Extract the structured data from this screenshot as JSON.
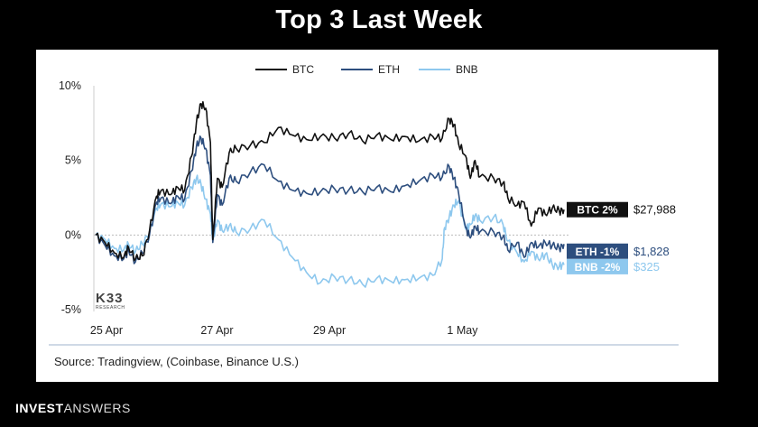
{
  "title": "Top 3 Last Week",
  "source": "Source: Tradingview, (Coinbase, Binance U.S.)",
  "footer": {
    "brand_bold": "INVEST",
    "brand_light": "ANSWERS"
  },
  "logo": {
    "big": "K33",
    "small": "RESEARCH"
  },
  "chart_data": {
    "type": "line",
    "ylim": [
      -5,
      10
    ],
    "yticks": [
      10,
      5,
      0,
      -5
    ],
    "ytick_labels": [
      "10%",
      "5%",
      "0%",
      "-5%"
    ],
    "xlim": [
      0,
      1
    ],
    "xticks": [
      0,
      0.236,
      0.476,
      0.76
    ],
    "xtick_labels": [
      "25 Apr",
      "27 Apr",
      "29 Apr",
      "1 May"
    ],
    "legend": [
      "BTC",
      "ETH",
      "BNB"
    ],
    "colors": {
      "BTC": "#111111",
      "ETH": "#2d4e7e",
      "BNB": "#8ec8ee"
    },
    "series": [
      {
        "name": "BTC",
        "values": [
          [
            0,
            0
          ],
          [
            0.02,
            -0.5
          ],
          [
            0.04,
            -1.2
          ],
          [
            0.06,
            -1.5
          ],
          [
            0.07,
            -0.8
          ],
          [
            0.085,
            -1.6
          ],
          [
            0.1,
            -1.4
          ],
          [
            0.115,
            0.3
          ],
          [
            0.13,
            2.6
          ],
          [
            0.14,
            3.0
          ],
          [
            0.16,
            2.7
          ],
          [
            0.175,
            3.2
          ],
          [
            0.19,
            3.0
          ],
          [
            0.205,
            5.3
          ],
          [
            0.215,
            7.5
          ],
          [
            0.225,
            8.8
          ],
          [
            0.235,
            8.5
          ],
          [
            0.245,
            6.2
          ],
          [
            0.25,
            -0.3
          ],
          [
            0.26,
            3.8
          ],
          [
            0.27,
            3.2
          ],
          [
            0.285,
            5.5
          ],
          [
            0.3,
            5.8
          ],
          [
            0.33,
            6.0
          ],
          [
            0.36,
            6.2
          ],
          [
            0.39,
            7.2
          ],
          [
            0.42,
            6.7
          ],
          [
            0.45,
            6.4
          ],
          [
            0.48,
            6.6
          ],
          [
            0.51,
            6.5
          ],
          [
            0.54,
            6.8
          ],
          [
            0.57,
            6.3
          ],
          [
            0.6,
            6.7
          ],
          [
            0.63,
            6.4
          ],
          [
            0.66,
            6.6
          ],
          [
            0.69,
            6.3
          ],
          [
            0.72,
            6.6
          ],
          [
            0.74,
            6.5
          ],
          [
            0.755,
            7.8
          ],
          [
            0.765,
            7.4
          ],
          [
            0.775,
            6.1
          ],
          [
            0.79,
            5.3
          ],
          [
            0.8,
            3.8
          ],
          [
            0.81,
            5.0
          ],
          [
            0.82,
            3.9
          ],
          [
            0.85,
            3.8
          ],
          [
            0.87,
            3.5
          ],
          [
            0.88,
            2.5
          ],
          [
            0.9,
            2.0
          ],
          [
            0.915,
            2.2
          ],
          [
            0.93,
            0.6
          ],
          [
            0.945,
            1.8
          ],
          [
            0.96,
            1.4
          ],
          [
            0.975,
            1.8
          ],
          [
            0.99,
            1.6
          ],
          [
            1.0,
            1.7
          ]
        ]
      },
      {
        "name": "ETH",
        "values": [
          [
            0,
            0
          ],
          [
            0.02,
            -0.7
          ],
          [
            0.04,
            -1.4
          ],
          [
            0.06,
            -1.6
          ],
          [
            0.07,
            -1.0
          ],
          [
            0.085,
            -1.8
          ],
          [
            0.1,
            -1.2
          ],
          [
            0.115,
            0
          ],
          [
            0.13,
            2.2
          ],
          [
            0.14,
            2.5
          ],
          [
            0.16,
            2.1
          ],
          [
            0.175,
            2.6
          ],
          [
            0.19,
            2.4
          ],
          [
            0.205,
            4.3
          ],
          [
            0.215,
            5.9
          ],
          [
            0.225,
            6.5
          ],
          [
            0.235,
            5.8
          ],
          [
            0.245,
            4.0
          ],
          [
            0.25,
            -0.5
          ],
          [
            0.26,
            2.7
          ],
          [
            0.27,
            2.0
          ],
          [
            0.285,
            3.8
          ],
          [
            0.3,
            3.6
          ],
          [
            0.33,
            4.2
          ],
          [
            0.36,
            4.7
          ],
          [
            0.39,
            3.6
          ],
          [
            0.42,
            3.0
          ],
          [
            0.45,
            2.8
          ],
          [
            0.48,
            2.9
          ],
          [
            0.51,
            3.1
          ],
          [
            0.54,
            3.0
          ],
          [
            0.57,
            2.9
          ],
          [
            0.6,
            3.2
          ],
          [
            0.63,
            2.9
          ],
          [
            0.66,
            3.3
          ],
          [
            0.69,
            3.6
          ],
          [
            0.72,
            4.0
          ],
          [
            0.74,
            3.9
          ],
          [
            0.755,
            4.6
          ],
          [
            0.765,
            3.8
          ],
          [
            0.775,
            2.8
          ],
          [
            0.79,
            0.5
          ],
          [
            0.8,
            -0.2
          ],
          [
            0.81,
            0.6
          ],
          [
            0.82,
            0.2
          ],
          [
            0.85,
            0.2
          ],
          [
            0.87,
            -0.1
          ],
          [
            0.88,
            -1.0
          ],
          [
            0.9,
            -0.5
          ],
          [
            0.915,
            -1.5
          ],
          [
            0.93,
            -0.5
          ],
          [
            0.945,
            -0.8
          ],
          [
            0.96,
            -0.5
          ],
          [
            0.975,
            -0.7
          ],
          [
            0.99,
            -0.9
          ],
          [
            1.0,
            -0.6
          ]
        ]
      },
      {
        "name": "BNB",
        "values": [
          [
            0,
            0
          ],
          [
            0.02,
            -0.3
          ],
          [
            0.04,
            -0.9
          ],
          [
            0.06,
            -1.0
          ],
          [
            0.07,
            -0.6
          ],
          [
            0.085,
            -1.1
          ],
          [
            0.1,
            -0.6
          ],
          [
            0.115,
            0.2
          ],
          [
            0.13,
            1.8
          ],
          [
            0.14,
            2.1
          ],
          [
            0.16,
            1.9
          ],
          [
            0.175,
            2.2
          ],
          [
            0.19,
            2.0
          ],
          [
            0.205,
            3.2
          ],
          [
            0.215,
            3.8
          ],
          [
            0.225,
            3.4
          ],
          [
            0.235,
            2.4
          ],
          [
            0.245,
            1.4
          ],
          [
            0.25,
            -0.4
          ],
          [
            0.26,
            1.0
          ],
          [
            0.27,
            0.3
          ],
          [
            0.285,
            0.6
          ],
          [
            0.3,
            0.2
          ],
          [
            0.33,
            0.4
          ],
          [
            0.36,
            1.0
          ],
          [
            0.39,
            -0.3
          ],
          [
            0.42,
            -1.5
          ],
          [
            0.45,
            -2.5
          ],
          [
            0.48,
            -3.2
          ],
          [
            0.51,
            -2.8
          ],
          [
            0.54,
            -3.0
          ],
          [
            0.57,
            -3.3
          ],
          [
            0.6,
            -2.9
          ],
          [
            0.63,
            -3.1
          ],
          [
            0.66,
            -3.0
          ],
          [
            0.69,
            -2.9
          ],
          [
            0.72,
            -2.7
          ],
          [
            0.74,
            -1.6
          ],
          [
            0.745,
            0.5
          ],
          [
            0.755,
            1.2
          ],
          [
            0.765,
            2.0
          ],
          [
            0.775,
            2.3
          ],
          [
            0.79,
            0.4
          ],
          [
            0.8,
            0.7
          ],
          [
            0.81,
            1.3
          ],
          [
            0.82,
            1.0
          ],
          [
            0.85,
            1.2
          ],
          [
            0.87,
            0.7
          ],
          [
            0.88,
            -0.4
          ],
          [
            0.9,
            -1.2
          ],
          [
            0.915,
            -1.8
          ],
          [
            0.93,
            -1.1
          ],
          [
            0.945,
            -1.6
          ],
          [
            0.96,
            -1.3
          ],
          [
            0.975,
            -2.0
          ],
          [
            0.99,
            -2.1
          ],
          [
            1.0,
            -2.0
          ]
        ]
      }
    ],
    "end_labels": [
      {
        "name": "BTC",
        "label": "BTC 2%",
        "price": "$27,988",
        "bg": "#111111",
        "fg": "#ffffff",
        "price_color": "#111111"
      },
      {
        "name": "ETH",
        "label": "ETH -1%",
        "price": "$1,828",
        "bg": "#2d4e7e",
        "fg": "#ffffff",
        "price_color": "#2d4e7e"
      },
      {
        "name": "BNB",
        "label": "BNB -2%",
        "price": "$325",
        "bg": "#8ec8ee",
        "fg": "#ffffff",
        "price_color": "#8ec8ee"
      }
    ]
  }
}
